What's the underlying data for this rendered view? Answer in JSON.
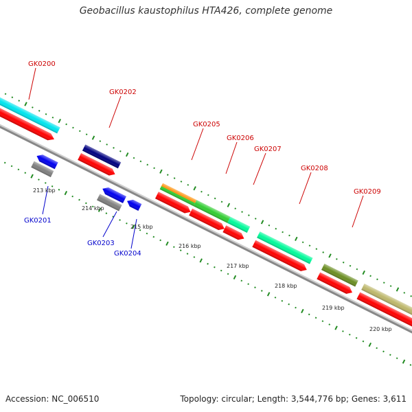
{
  "title": "Geobacillus kaustophilus HTA426, complete genome",
  "footer": {
    "accession": "Accession: NC_006510",
    "topology": "Topology: circular; Length: 3,544,776 bp; Genes: 3,611"
  },
  "kbp_labels": [
    "213 kbp",
    "214 kbp",
    "215 kbp",
    "216 kbp",
    "217 kbp",
    "218 kbp",
    "219 kbp",
    "220 kbp"
  ],
  "genes": [
    {
      "name": "GK0200",
      "strand": "plus",
      "color": "#00e5ee",
      "label_color": "#cc0000"
    },
    {
      "name": "GK0201",
      "strand": "minus",
      "color": "#0000ee",
      "label_color": "#0000cc"
    },
    {
      "name": "GK0202",
      "strand": "plus",
      "color": "#000080",
      "label_color": "#cc0000"
    },
    {
      "name": "GK0203",
      "strand": "minus",
      "color": "#0000ee",
      "label_color": "#0000cc"
    },
    {
      "name": "GK0204",
      "strand": "minus",
      "color": "#0000ee",
      "label_color": "#0000cc"
    },
    {
      "name": "GK0205",
      "strand": "plus",
      "color": "#ff8c00",
      "label_color": "#cc0000"
    },
    {
      "name": "GK0206",
      "strand": "plus",
      "color": "#32cd32",
      "label_color": "#cc0000"
    },
    {
      "name": "GK0207",
      "strand": "plus",
      "color": "#00fa9a",
      "label_color": "#cc0000"
    },
    {
      "name": "GK0208",
      "strand": "plus",
      "color": "#00fa9a",
      "label_color": "#cc0000"
    },
    {
      "name": "GK0209",
      "strand": "plus",
      "color": "#6b8e23",
      "label_color": "#cc0000"
    }
  ],
  "colors": {
    "cds": "#ff0000",
    "backbone": "#888888",
    "ticks": "#228b22",
    "other_gene": "#808080",
    "tan_gene": "#bdb76b"
  }
}
